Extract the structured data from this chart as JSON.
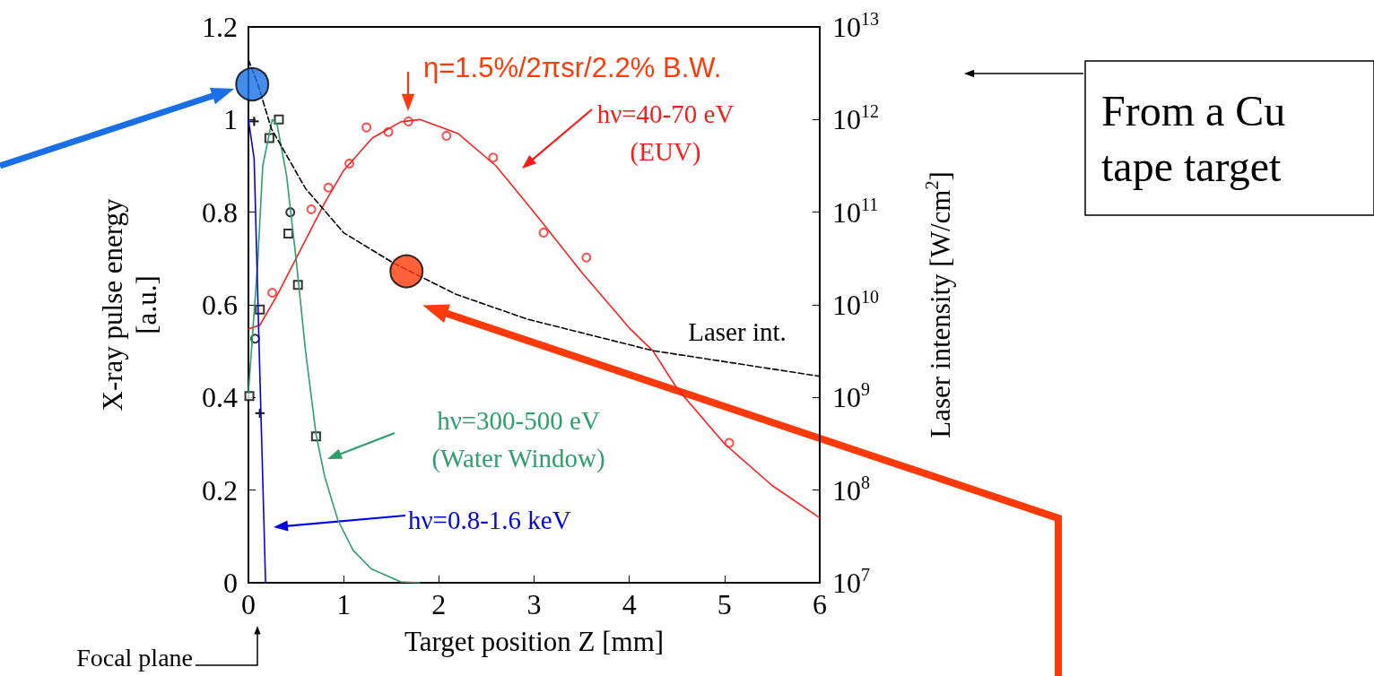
{
  "chart_data": {
    "type": "line",
    "xlabel": "Target position Z [mm]",
    "ylabel": "X-ray pulse energy\n[a.u.]",
    "y2label": "Laser intensity [W/cm$^{2}$]",
    "xlim": [
      0,
      6
    ],
    "xticks": [
      0,
      1,
      2,
      3,
      4,
      5,
      6
    ],
    "ylim": [
      0,
      1.2
    ],
    "yticks": [
      0,
      0.2,
      0.4,
      0.6,
      0.8,
      1,
      1.2
    ],
    "y2lim": [
      10000000,
      10000000000000
    ],
    "y2ticks": [
      {
        "value": 10000000,
        "label": "10$^{7}$"
      },
      {
        "value": 100000000,
        "label": "10$^{8}$"
      },
      {
        "value": 1000000000,
        "label": "10$^{9}$"
      },
      {
        "value": 10000000000,
        "label": "10$^{10}$"
      },
      {
        "value": 100000000000,
        "label": "10$^{11}$"
      },
      {
        "value": 1000000000000,
        "label": "10$^{12}$"
      },
      {
        "value": 10000000000000,
        "label": "10$^{13}$"
      }
    ],
    "log": "y2",
    "grid": false,
    "series": [
      {
        "color": "#ff2020",
        "marker": "none",
        "x": [
          0,
          0.12,
          0.3,
          0.5,
          0.8,
          1.0,
          1.3,
          1.6,
          1.8,
          2.2,
          2.6,
          3.0,
          3.5,
          4.0,
          4.25,
          4.5,
          5.0,
          5.5,
          6.0
        ],
        "values": [
          0.548,
          0.556,
          0.62,
          0.7,
          0.82,
          0.89,
          0.96,
          0.995,
          1.0,
          0.97,
          0.9,
          0.8,
          0.67,
          0.55,
          0.5,
          0.42,
          0.3,
          0.21,
          0.14
        ]
      },
      {
        "type": "scatter",
        "color": "#ff2020",
        "marker": "circle",
        "x": [
          0.25,
          0.66,
          0.84,
          1.06,
          1.24,
          1.47,
          1.68,
          2.08,
          2.57,
          3.1,
          3.55,
          5.05
        ],
        "values": [
          0.626,
          0.806,
          0.853,
          0.905,
          0.983,
          0.973,
          0.996,
          0.965,
          0.918,
          0.756,
          0.702,
          0.302
        ]
      },
      {
        "color": "#2e9e6a",
        "marker": "none",
        "x": [
          0,
          0.1,
          0.15,
          0.25,
          0.3,
          0.4,
          0.5,
          0.6,
          0.71,
          0.8,
          0.94,
          1.1,
          1.29,
          1.6,
          1.8
        ],
        "values": [
          0.41,
          0.7,
          0.9,
          1.0,
          0.99,
          0.88,
          0.7,
          0.5,
          0.32,
          0.23,
          0.135,
          0.07,
          0.03,
          0.002,
          0
        ]
      },
      {
        "type": "scatter",
        "color": "#000000",
        "marker": "square",
        "x": [
          0.01,
          0.12,
          0.22,
          0.32,
          0.42,
          0.52,
          0.71
        ],
        "values": [
          0.403,
          0.59,
          0.96,
          1.0,
          0.754,
          0.643,
          0.316
        ]
      },
      {
        "type": "scatter",
        "color": "#000000",
        "marker": "circle",
        "x": [
          0.07,
          0.44
        ],
        "values": [
          0.527,
          0.8
        ]
      },
      {
        "type": "scatter",
        "color": "#000000",
        "marker": "cross",
        "x": [
          0.06,
          0.12
        ],
        "values": [
          0.996,
          0.366
        ]
      },
      {
        "color": "#0000ee",
        "marker": "none",
        "x": [
          0,
          0.06,
          0.12,
          0.18
        ],
        "values": [
          1.0,
          0.915,
          0.45,
          0
        ]
      },
      {
        "color": "#000000",
        "marker": "none",
        "line_style": "dashed",
        "axis": "y2",
        "x": [
          0,
          0.1,
          0.24,
          0.6,
          1.0,
          1.53,
          2.18,
          2.93,
          4.25,
          5.99
        ],
        "values": [
          4400000000000,
          2400000000000,
          800000000000,
          180000000000,
          60000000000,
          28000000000,
          13000000000,
          7000000000,
          3200000000,
          1700000000
        ]
      },
      {
        "type": "bubble",
        "axis": "y2",
        "marker": "circle",
        "x": [
          0.04,
          1.66
        ],
        "values": [
          2400000000000,
          23000000000
        ],
        "sizes": [
          1,
          1
        ],
        "colors": [
          "#1a6fe6",
          "#ff3a0a"
        ]
      }
    ],
    "annotations": [
      "η=1.5%/2πsr/2.2% B.W.",
      "hν=40-70 eV\n(EUV)",
      "hν=300-500 eV\n(Water Window)",
      "hν=0.8-1.6 keV",
      "Laser int.",
      "From a Cu tape target",
      "Focal plane"
    ]
  }
}
